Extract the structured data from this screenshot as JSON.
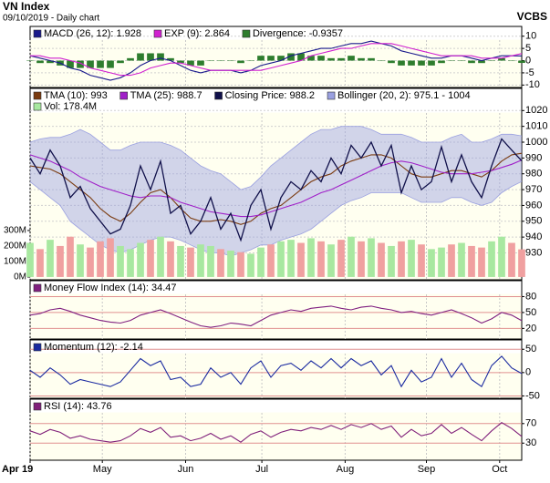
{
  "header": {
    "title": "VN Index",
    "subtitle": "09/10/2019 - Daily chart",
    "source": "VCBS"
  },
  "chart_data": [
    {
      "type": "line",
      "xlim": [
        0,
        49
      ],
      "ylim": [
        -11,
        14
      ],
      "yticks": [
        -10,
        -5,
        0,
        5,
        10
      ],
      "series": [
        {
          "name": "MACD (26, 12): 1.928",
          "kind": "line",
          "color": "#1a1a8c",
          "values": [
            2,
            1,
            0,
            -1,
            -3,
            -4,
            -6,
            -7,
            -8,
            -7,
            -5,
            -2,
            0,
            1,
            0,
            -2,
            -4,
            -5,
            -4,
            -4,
            -4,
            -5,
            -4,
            -2,
            -1,
            0,
            2,
            3,
            4,
            5,
            5,
            6,
            7,
            7,
            8,
            7,
            6,
            4,
            3,
            2,
            1,
            1,
            2,
            2,
            1,
            0,
            1,
            2,
            2,
            1.928
          ]
        },
        {
          "name": "EXP (9): 2.864",
          "kind": "line",
          "color": "#d020d0",
          "values": [
            2,
            2,
            1,
            1,
            0,
            -1,
            -3,
            -4,
            -5,
            -6,
            -6,
            -5,
            -3,
            -2,
            -1,
            -1,
            -2,
            -3,
            -4,
            -4,
            -4,
            -4,
            -4,
            -4,
            -3,
            -2,
            -1,
            0,
            2,
            3,
            4,
            5,
            5,
            6,
            7,
            7,
            7,
            6,
            5,
            4,
            3,
            2,
            2,
            2,
            2,
            1,
            1,
            1,
            2,
            2.864
          ]
        },
        {
          "name": "Divergence: -0.9357",
          "kind": "bar",
          "color": "#2e7d2e",
          "values": [
            0,
            -1,
            -1,
            -2,
            -3,
            -3,
            -3,
            -3,
            -3,
            -1,
            1,
            3,
            3,
            3,
            1,
            -1,
            -2,
            -2,
            0,
            0,
            0,
            -1,
            0,
            2,
            2,
            2,
            3,
            3,
            2,
            2,
            1,
            1,
            2,
            1,
            1,
            0,
            -1,
            -2,
            -2,
            -2,
            -2,
            -1,
            0,
            0,
            -1,
            -1,
            0,
            1,
            0,
            -0.9357
          ]
        }
      ]
    },
    {
      "type": "line",
      "xlim": [
        0,
        49
      ],
      "ylim": [
        913,
        1034
      ],
      "yticks": [
        930,
        940,
        950,
        960,
        970,
        980,
        990,
        1000,
        1010,
        1020
      ],
      "y2lim": [
        -18,
        1217
      ],
      "y2ticks": [
        {
          "value": 0,
          "label": "0M"
        },
        {
          "value": 100,
          "label": "100M"
        },
        {
          "value": 200,
          "label": "200M"
        },
        {
          "value": 300,
          "label": "300M"
        }
      ],
      "series": [
        {
          "name": "TMA (10): 993",
          "kind": "line",
          "color": "#7a3b10",
          "values": [
            985,
            984,
            983,
            980,
            975,
            970,
            965,
            958,
            953,
            950,
            955,
            962,
            968,
            970,
            965,
            958,
            952,
            950,
            950,
            951,
            950,
            948,
            950,
            955,
            958,
            960,
            965,
            970,
            975,
            978,
            980,
            985,
            988,
            990,
            992,
            992,
            990,
            985,
            980,
            978,
            978,
            980,
            982,
            982,
            980,
            978,
            982,
            988,
            992,
            993
          ]
        },
        {
          "name": "TMA (25): 988.7",
          "kind": "line",
          "color": "#a020c8",
          "values": [
            992,
            990,
            988,
            985,
            982,
            978,
            975,
            972,
            970,
            968,
            966,
            965,
            966,
            966,
            965,
            962,
            960,
            958,
            956,
            955,
            954,
            953,
            953,
            954,
            956,
            958,
            960,
            962,
            965,
            968,
            970,
            973,
            976,
            979,
            982,
            985,
            987,
            988,
            987,
            985,
            983,
            981,
            980,
            980,
            980,
            981,
            982,
            984,
            986,
            988.7
          ]
        },
        {
          "name": "Closing Price: 988.2",
          "kind": "line",
          "color": "#10104a",
          "values": [
            990,
            980,
            995,
            985,
            965,
            972,
            958,
            950,
            942,
            945,
            960,
            985,
            970,
            988,
            955,
            960,
            942,
            950,
            965,
            945,
            955,
            938,
            960,
            970,
            945,
            965,
            975,
            970,
            982,
            975,
            990,
            980,
            998,
            990,
            1000,
            985,
            998,
            968,
            985,
            970,
            975,
            997,
            975,
            992,
            975,
            965,
            985,
            1002,
            995,
            988.2
          ]
        },
        {
          "name": "Bollinger (20, 2): 975.1 - 1004",
          "kind": "band",
          "color": "#9aa0e0",
          "upper": [
            1000,
            1002,
            1003,
            1003,
            1005,
            1008,
            1005,
            1000,
            995,
            995,
            998,
            1000,
            1000,
            1000,
            998,
            995,
            990,
            985,
            982,
            980,
            975,
            970,
            972,
            978,
            985,
            990,
            995,
            1000,
            1005,
            1008,
            1008,
            1010,
            1010,
            1010,
            1008,
            1005,
            1005,
            1005,
            1003,
            1000,
            1000,
            1000,
            1003,
            1005,
            1000,
            1000,
            1002,
            1005,
            1005,
            1004
          ],
          "lower": [
            975,
            970,
            965,
            960,
            950,
            945,
            940,
            935,
            932,
            930,
            932,
            935,
            938,
            940,
            940,
            938,
            935,
            932,
            930,
            930,
            928,
            930,
            932,
            935,
            935,
            938,
            940,
            942,
            945,
            950,
            955,
            960,
            963,
            965,
            968,
            968,
            968,
            968,
            965,
            962,
            962,
            962,
            965,
            965,
            962,
            960,
            962,
            968,
            972,
            975.1
          ]
        },
        {
          "name": "Vol: 178.4M",
          "kind": "bar",
          "axis": "y2",
          "color": "#a8e8a0",
          "down_color": "#f0a0a0",
          "values": [
            220,
            180,
            240,
            200,
            260,
            210,
            190,
            230,
            250,
            200,
            180,
            220,
            240,
            260,
            230,
            200,
            190,
            210,
            200,
            180,
            170,
            160,
            150,
            190,
            210,
            230,
            240,
            220,
            250,
            230,
            210,
            240,
            260,
            230,
            250,
            220,
            200,
            230,
            240,
            210,
            180,
            190,
            210,
            220,
            200,
            190,
            230,
            260,
            220,
            178.4
          ]
        }
      ]
    },
    {
      "type": "line",
      "xlim": [
        0,
        49
      ],
      "ylim": [
        0,
        110
      ],
      "yticks": [
        20,
        50,
        80
      ],
      "series": [
        {
          "name": "Money Flow Index (14): 34.47",
          "kind": "line",
          "color": "#802080",
          "values": [
            45,
            48,
            55,
            58,
            52,
            45,
            40,
            35,
            32,
            30,
            35,
            45,
            50,
            55,
            48,
            40,
            32,
            25,
            22,
            25,
            30,
            28,
            25,
            35,
            45,
            50,
            55,
            52,
            58,
            60,
            62,
            58,
            55,
            60,
            62,
            58,
            55,
            50,
            52,
            48,
            45,
            50,
            55,
            48,
            40,
            30,
            38,
            50,
            45,
            34.47
          ]
        }
      ]
    },
    {
      "type": "line",
      "xlim": [
        0,
        49
      ],
      "ylim": [
        -55,
        70
      ],
      "yticks": [
        -50,
        0,
        50
      ],
      "series": [
        {
          "name": "Momentum (12): -2.14",
          "kind": "line",
          "color": "#1a2aa0",
          "values": [
            5,
            -10,
            10,
            -5,
            -25,
            -15,
            -20,
            -25,
            -30,
            -20,
            5,
            30,
            15,
            25,
            -15,
            -10,
            -30,
            -25,
            10,
            -10,
            0,
            -25,
            10,
            25,
            -10,
            15,
            20,
            5,
            25,
            10,
            30,
            10,
            30,
            15,
            25,
            -5,
            15,
            -30,
            5,
            -20,
            -10,
            30,
            -10,
            20,
            -15,
            -30,
            15,
            35,
            10,
            -2.14
          ]
        }
      ]
    },
    {
      "type": "line",
      "xlim": [
        0,
        49
      ],
      "ylim": [
        -5,
        120
      ],
      "yticks": [
        30,
        70
      ],
      "xticks": [
        {
          "value": 0,
          "label": "Apr 19"
        },
        {
          "value": 7.2,
          "label": "May"
        },
        {
          "value": 15.5,
          "label": "Jun"
        },
        {
          "value": 23.1,
          "label": "Jul"
        },
        {
          "value": 31.4,
          "label": "Aug"
        },
        {
          "value": 39.5,
          "label": "Sep"
        },
        {
          "value": 46.8,
          "label": "Oct"
        }
      ],
      "series": [
        {
          "name": "RSI (14): 43.76",
          "kind": "line",
          "color": "#80207a",
          "values": [
            55,
            48,
            58,
            52,
            40,
            45,
            38,
            35,
            32,
            35,
            45,
            60,
            52,
            62,
            42,
            45,
            35,
            40,
            50,
            38,
            45,
            32,
            48,
            55,
            42,
            52,
            58,
            55,
            62,
            58,
            66,
            58,
            68,
            62,
            70,
            58,
            65,
            42,
            58,
            45,
            50,
            68,
            50,
            62,
            48,
            35,
            55,
            72,
            60,
            43.76
          ]
        }
      ]
    }
  ]
}
